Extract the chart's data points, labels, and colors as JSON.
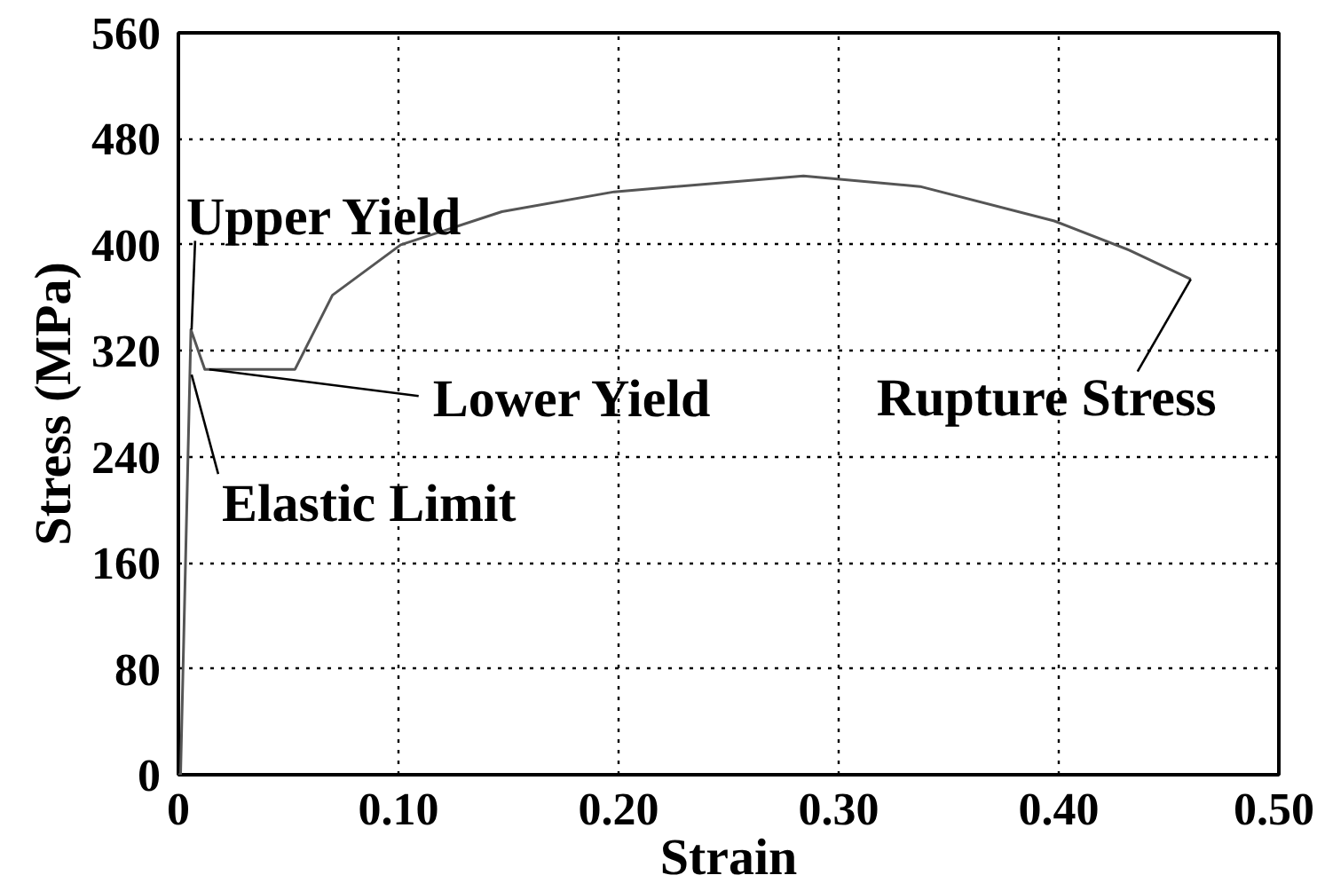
{
  "chart_data": {
    "type": "line",
    "xlabel": "Strain",
    "ylabel": "Stress (MPa)",
    "x": [
      0,
      0.001,
      0.0057,
      0.012,
      0.053,
      0.07,
      0.101,
      0.147,
      0.198,
      0.284,
      0.337,
      0.398,
      0.432,
      0.46
    ],
    "series": [
      {
        "color": "#555555",
        "values": [
          0,
          0,
          336,
          306,
          306,
          362,
          400,
          425,
          440,
          452,
          444,
          418,
          396,
          374
        ]
      }
    ],
    "xlim": [
      0,
      0.5
    ],
    "ylim": [
      0,
      560
    ],
    "xticks": [
      0,
      {
        "value": 0.1,
        "label": "0.10"
      },
      {
        "value": 0.2,
        "label": "0.20"
      },
      {
        "value": 0.3,
        "label": "0.30"
      },
      {
        "value": 0.4,
        "label": "0.40"
      },
      {
        "value": 0.5,
        "label": "0.50"
      }
    ],
    "yticks": [
      0,
      80,
      160,
      240,
      320,
      400,
      480,
      560
    ],
    "grid": true,
    "line_style": "solid",
    "annotations": [
      {
        "text": "Upper Yield",
        "x": 0.006,
        "y": 336
      },
      {
        "text": "Lower Yield",
        "x": 0.014,
        "y": 306
      },
      {
        "text": "Elastic Limit",
        "x": 0.006,
        "y": 302
      },
      {
        "text": "Rupture Stress",
        "x": 0.46,
        "y": 374
      }
    ]
  }
}
